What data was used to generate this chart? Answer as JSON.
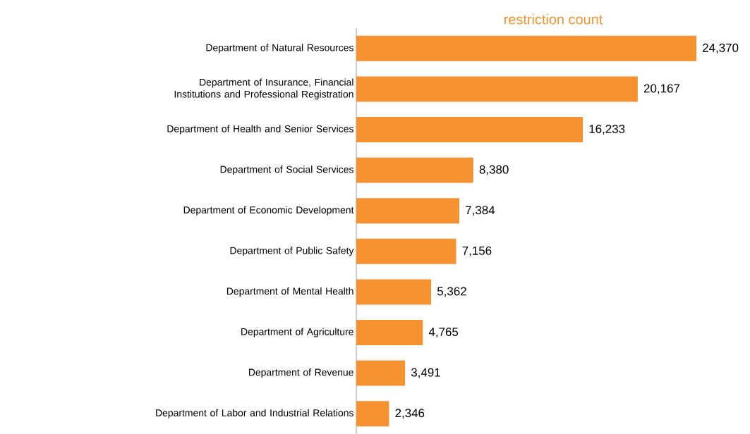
{
  "chart_data": {
    "type": "bar",
    "orientation": "horizontal",
    "title": "restriction count",
    "categories": [
      "Department of Natural Resources",
      "Department of Insurance, Financial Institutions and Professional Registration",
      "Department of Health and Senior Services",
      "Department of Social Services",
      "Department of Economic Development",
      "Department of Public Safety",
      "Department of Mental Health",
      "Department of Agriculture",
      "Department of Revenue",
      "Department of Labor and Industrial Relations"
    ],
    "values": [
      24370,
      20167,
      16233,
      8380,
      7384,
      7156,
      5362,
      4765,
      3491,
      2346
    ],
    "value_labels": [
      "24,370",
      "20,167",
      "16,233",
      "8,380",
      "7,384",
      "7,156",
      "5,362",
      "4,765",
      "3,491",
      "2,346"
    ],
    "color": "#f5922f"
  }
}
